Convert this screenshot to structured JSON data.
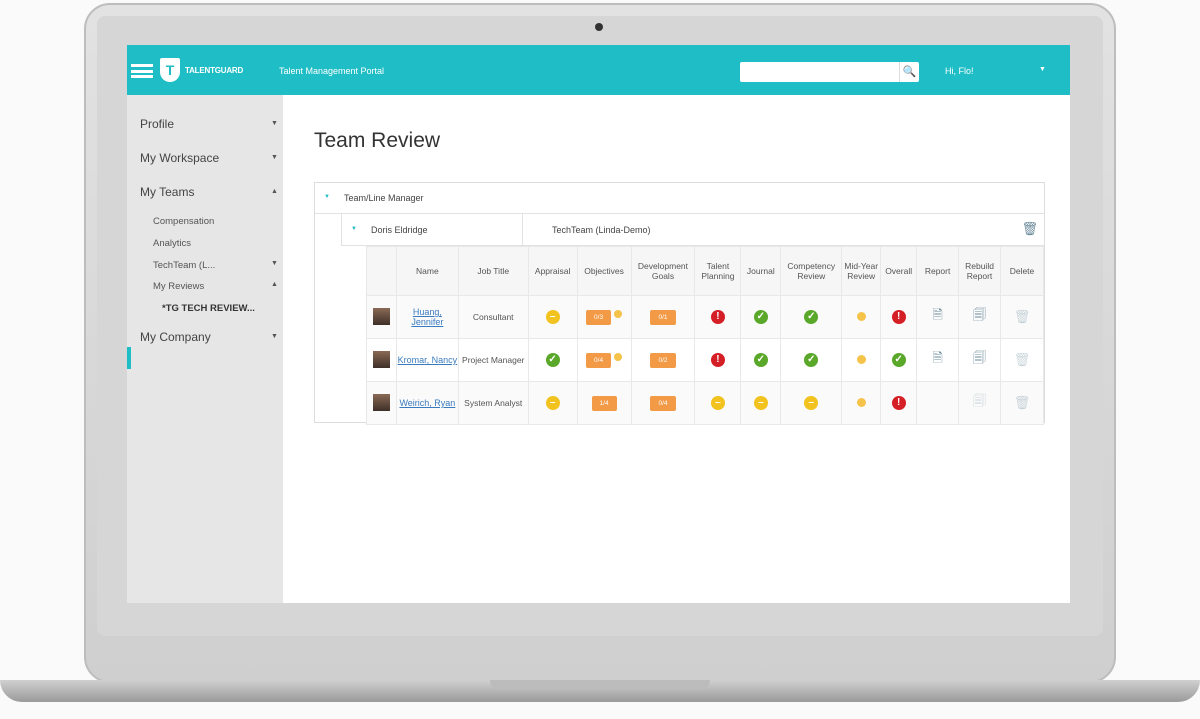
{
  "header": {
    "brand": "TALENTGUARD",
    "portal": "Talent Management Portal",
    "search_placeholder": "",
    "greeting": "Hi, Flo!",
    "accent": "#1fbdc5"
  },
  "sidebar": {
    "items": [
      {
        "label": "Profile"
      },
      {
        "label": "My Workspace"
      },
      {
        "label": "My Teams"
      },
      {
        "label": "My Company"
      }
    ],
    "sub_items": [
      {
        "label": "Compensation"
      },
      {
        "label": "Analytics"
      },
      {
        "label": "TechTeam (L..."
      },
      {
        "label": "My Reviews"
      },
      {
        "label": "*TG TECH REVIEW..."
      }
    ]
  },
  "page": {
    "title": "Team Review",
    "group": "Team/Line Manager",
    "manager": "Doris Eldridge",
    "team": "TechTeam (Linda-Demo)"
  },
  "table": {
    "columns": [
      "Name",
      "Job Title",
      "Appraisal",
      "Objectives",
      "Development Goals",
      "Talent Planning",
      "Journal",
      "Competency Review",
      "Mid-Year Review",
      "Overall",
      "Report",
      "Rebuild Report",
      "Delete"
    ],
    "rows": [
      {
        "name": "Huang, Jennifer",
        "job": "Consultant",
        "appraisal": "in-progress",
        "objectives": "0/3",
        "objectives_flag": true,
        "dev_goals": "0/1",
        "talent": "error",
        "journal": "complete",
        "competency": "complete",
        "midyear": "pending",
        "overall": "error",
        "report": true
      },
      {
        "name": "Kromar, Nancy",
        "job": "Project Manager",
        "appraisal": "complete",
        "objectives": "0/4",
        "objectives_flag": true,
        "dev_goals": "0/2",
        "talent": "error",
        "journal": "complete",
        "competency": "complete",
        "midyear": "pending",
        "overall": "complete",
        "report": true
      },
      {
        "name": "Weirich, Ryan",
        "job": "System Analyst",
        "appraisal": "in-progress",
        "objectives": "1/4",
        "objectives_flag": false,
        "dev_goals": "0/4",
        "talent": "in-progress",
        "journal": "in-progress",
        "competency": "in-progress",
        "midyear": "pending",
        "overall": "error",
        "report": false
      }
    ]
  },
  "status_colors": {
    "complete": "#5aa829",
    "error": "#d51f26",
    "in-progress": "#f2c21f",
    "badge": "#f29a45"
  }
}
